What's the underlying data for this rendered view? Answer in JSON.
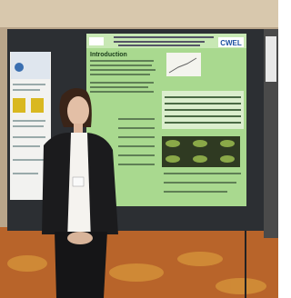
{
  "poster": {
    "heading": "Introduction",
    "logo": "CWEL"
  }
}
